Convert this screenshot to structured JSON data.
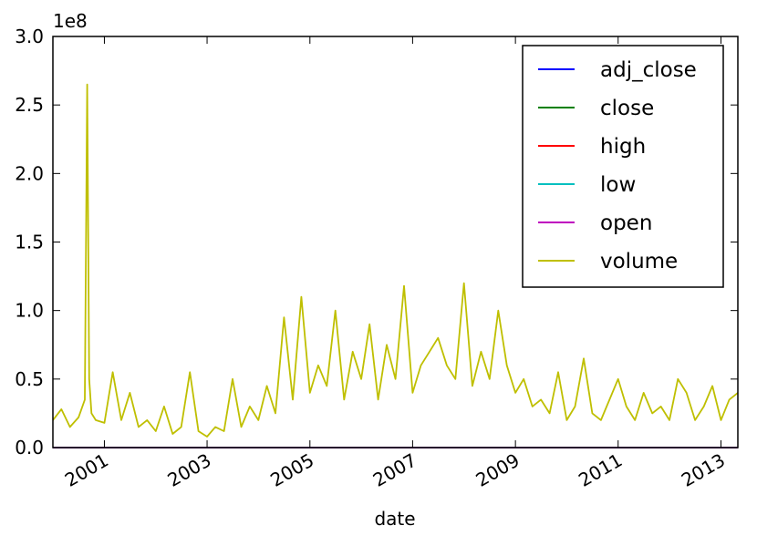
{
  "chart_data": {
    "type": "line",
    "xlabel": "date",
    "ylabel": "",
    "offset_label": "1e8",
    "xlim": [
      "2000-01-01",
      "2013-05-01"
    ],
    "ylim": [
      0,
      3.0
    ],
    "y_scale_factor": 100000000.0,
    "xticks": [
      {
        "date": "2001-01-01",
        "label": "2001"
      },
      {
        "date": "2003-01-01",
        "label": "2003"
      },
      {
        "date": "2005-01-01",
        "label": "2005"
      },
      {
        "date": "2007-01-01",
        "label": "2007"
      },
      {
        "date": "2009-01-01",
        "label": "2009"
      },
      {
        "date": "2011-01-01",
        "label": "2011"
      },
      {
        "date": "2013-01-01",
        "label": "2013"
      }
    ],
    "yticks": [
      {
        "value": 0.0,
        "label": "0.0"
      },
      {
        "value": 0.5,
        "label": "0.5"
      },
      {
        "value": 1.0,
        "label": "1.0"
      },
      {
        "value": 1.5,
        "label": "1.5"
      },
      {
        "value": 2.0,
        "label": "2.0"
      },
      {
        "value": 2.5,
        "label": "2.5"
      },
      {
        "value": 3.0,
        "label": "3.0"
      }
    ],
    "legend_position": "top-right",
    "grid": false,
    "series": [
      {
        "name": "adj_close",
        "color": "#0000ff",
        "x": [
          "2000-01-01",
          "2013-05-01"
        ],
        "y": [
          0.0,
          0.0
        ]
      },
      {
        "name": "close",
        "color": "#008000",
        "x": [
          "2000-01-01",
          "2013-05-01"
        ],
        "y": [
          0.0,
          0.0
        ]
      },
      {
        "name": "high",
        "color": "#ff0000",
        "x": [
          "2000-01-01",
          "2013-05-01"
        ],
        "y": [
          0.0,
          0.0
        ]
      },
      {
        "name": "low",
        "color": "#00bfbf",
        "x": [
          "2000-01-01",
          "2013-05-01"
        ],
        "y": [
          0.0,
          0.0
        ]
      },
      {
        "name": "open",
        "color": "#bf00bf",
        "x": [
          "2000-01-01",
          "2013-05-01"
        ],
        "y": [
          0.0,
          0.0
        ]
      },
      {
        "name": "volume",
        "color": "#bfbf00",
        "x": [
          "2000-01-01",
          "2000-03-01",
          "2000-05-01",
          "2000-07-01",
          "2000-08-15",
          "2000-09-01",
          "2000-09-15",
          "2000-10-01",
          "2000-11-01",
          "2001-01-01",
          "2001-03-01",
          "2001-05-01",
          "2001-07-01",
          "2001-09-01",
          "2001-11-01",
          "2002-01-01",
          "2002-03-01",
          "2002-05-01",
          "2002-07-01",
          "2002-09-01",
          "2002-11-01",
          "2003-01-01",
          "2003-03-01",
          "2003-05-01",
          "2003-07-01",
          "2003-09-01",
          "2003-11-01",
          "2004-01-01",
          "2004-03-01",
          "2004-05-01",
          "2004-07-01",
          "2004-09-01",
          "2004-11-01",
          "2005-01-01",
          "2005-03-01",
          "2005-05-01",
          "2005-07-01",
          "2005-09-01",
          "2005-11-01",
          "2006-01-01",
          "2006-03-01",
          "2006-05-01",
          "2006-07-01",
          "2006-09-01",
          "2006-11-01",
          "2007-01-01",
          "2007-03-01",
          "2007-05-01",
          "2007-07-01",
          "2007-09-01",
          "2007-11-01",
          "2008-01-01",
          "2008-03-01",
          "2008-05-01",
          "2008-07-01",
          "2008-09-01",
          "2008-11-01",
          "2009-01-01",
          "2009-03-01",
          "2009-05-01",
          "2009-07-01",
          "2009-09-01",
          "2009-11-01",
          "2010-01-01",
          "2010-03-01",
          "2010-05-01",
          "2010-07-01",
          "2010-09-01",
          "2010-11-01",
          "2011-01-01",
          "2011-03-01",
          "2011-05-01",
          "2011-07-01",
          "2011-09-01",
          "2011-11-01",
          "2012-01-01",
          "2012-03-01",
          "2012-05-01",
          "2012-07-01",
          "2012-09-01",
          "2012-11-01",
          "2013-01-01",
          "2013-03-01",
          "2013-05-01"
        ],
        "y": [
          0.2,
          0.28,
          0.15,
          0.22,
          0.35,
          2.65,
          0.5,
          0.25,
          0.2,
          0.18,
          0.55,
          0.2,
          0.4,
          0.15,
          0.2,
          0.12,
          0.3,
          0.1,
          0.15,
          0.55,
          0.12,
          0.08,
          0.15,
          0.12,
          0.5,
          0.15,
          0.3,
          0.2,
          0.45,
          0.25,
          0.95,
          0.35,
          1.1,
          0.4,
          0.6,
          0.45,
          1.0,
          0.35,
          0.7,
          0.5,
          0.9,
          0.35,
          0.75,
          0.5,
          1.18,
          0.4,
          0.6,
          0.7,
          0.8,
          0.6,
          0.5,
          1.2,
          0.45,
          0.7,
          0.5,
          1.0,
          0.6,
          0.4,
          0.5,
          0.3,
          0.35,
          0.25,
          0.55,
          0.2,
          0.3,
          0.65,
          0.25,
          0.2,
          0.35,
          0.5,
          0.3,
          0.2,
          0.4,
          0.25,
          0.3,
          0.2,
          0.5,
          0.4,
          0.2,
          0.3,
          0.45,
          0.2,
          0.35,
          0.4
        ]
      }
    ]
  }
}
